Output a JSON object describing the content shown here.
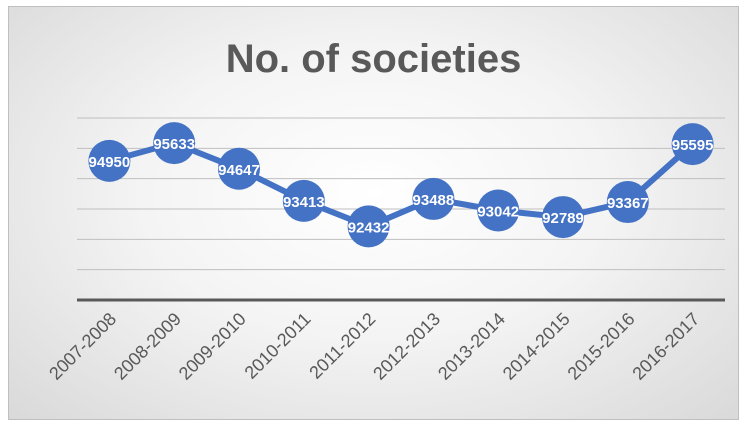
{
  "chart_data": {
    "type": "line",
    "title": "No. of societies",
    "categories": [
      "2007-2008",
      "2008-2009",
      "2009-2010",
      "2010-2011",
      "2011-2012",
      "2012-2013",
      "2013-2014",
      "2014-2015",
      "2015-2016",
      "2016-2017"
    ],
    "values": [
      94950,
      95633,
      94647,
      93413,
      92432,
      93488,
      93042,
      92789,
      93367,
      95595
    ],
    "data_labels": [
      "94950",
      "95633",
      "94647",
      "93413",
      "92432",
      "93488",
      "93042",
      "92789",
      "93367",
      "95595"
    ],
    "ylim": [
      89600,
      96600
    ],
    "grid": true,
    "legend": "none",
    "colors": {
      "line": "#4472c4",
      "marker": "#4472c4",
      "label": "#ffffff",
      "axis": "#595959",
      "grid": "#bfbfbf"
    }
  }
}
